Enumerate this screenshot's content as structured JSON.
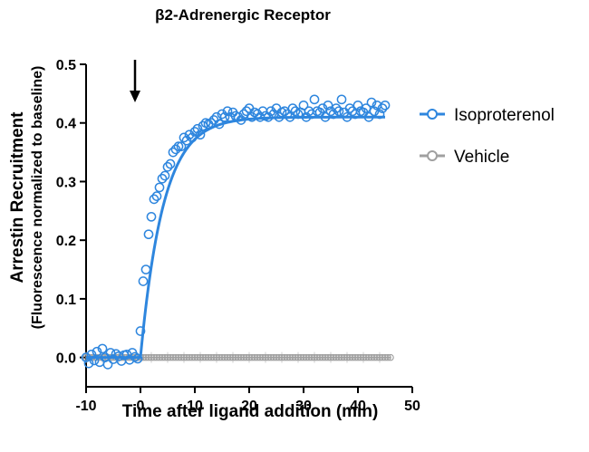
{
  "chart_data": {
    "type": "scatter",
    "title": "β2-Adrenergic Receptor",
    "xlabel": "Time after ligand addition (min)",
    "ylabel": "Arrestin Recruitment",
    "ylabel_secondary": "(Fluorescence normalized to baseline)",
    "xlim": [
      -10,
      50
    ],
    "ylim": [
      -0.05,
      0.5
    ],
    "x_ticks": [
      -10,
      0,
      10,
      20,
      30,
      40,
      50
    ],
    "x_tick_labels": [
      "-10",
      "0",
      "10",
      "20",
      "30",
      "40",
      "50"
    ],
    "y_ticks": [
      0.0,
      0.1,
      0.2,
      0.3,
      0.4,
      0.5
    ],
    "y_tick_labels": [
      "0.0",
      "0.1",
      "0.2",
      "0.3",
      "0.4",
      "0.5"
    ],
    "annotation_arrow_x": -1,
    "legend_position": "right",
    "grid": false,
    "series": [
      {
        "name": "Isoproterenol",
        "color": "#2e86de",
        "fit": {
          "baseline": 0.0,
          "plateau": 0.41,
          "t0": 0,
          "tau": 4.2
        },
        "x": [
          -10,
          -9.5,
          -9,
          -8.5,
          -8,
          -7.5,
          -7,
          -6.5,
          -6,
          -5.5,
          -5,
          -4.5,
          -4,
          -3.5,
          -3,
          -2.5,
          -2,
          -1.5,
          -1,
          -0.5,
          0,
          0.5,
          1,
          1.5,
          2,
          2.5,
          3,
          3.5,
          4,
          4.5,
          5,
          5.5,
          6,
          6.5,
          7,
          7.5,
          8,
          8.5,
          9,
          9.5,
          10,
          10.5,
          11,
          11.5,
          12,
          12.5,
          13,
          13.5,
          14,
          14.5,
          15,
          15.5,
          16,
          16.5,
          17,
          17.5,
          18,
          18.5,
          19,
          19.5,
          20,
          20.5,
          21,
          21.5,
          22,
          22.5,
          23,
          23.5,
          24,
          24.5,
          25,
          25.5,
          26,
          26.5,
          27,
          27.5,
          28,
          28.5,
          29,
          29.5,
          30,
          30.5,
          31,
          31.5,
          32,
          32.5,
          33,
          33.5,
          34,
          34.5,
          35,
          35.5,
          36,
          36.5,
          37,
          37.5,
          38,
          38.5,
          39,
          39.5,
          40,
          40.5,
          41,
          41.5,
          42,
          42.5,
          43,
          43.5,
          44,
          44.5,
          45
        ],
        "y": [
          0.0,
          -0.01,
          0.005,
          -0.005,
          0.01,
          -0.008,
          0.015,
          0.0,
          -0.012,
          0.008,
          -0.003,
          0.006,
          0.002,
          -0.006,
          0.004,
          0.005,
          -0.004,
          0.008,
          0.001,
          -0.002,
          0.045,
          0.13,
          0.15,
          0.21,
          0.24,
          0.27,
          0.275,
          0.29,
          0.305,
          0.31,
          0.325,
          0.33,
          0.35,
          0.355,
          0.36,
          0.36,
          0.375,
          0.37,
          0.38,
          0.375,
          0.385,
          0.39,
          0.38,
          0.395,
          0.4,
          0.398,
          0.4,
          0.405,
          0.41,
          0.398,
          0.415,
          0.41,
          0.42,
          0.41,
          0.418,
          0.412,
          0.41,
          0.405,
          0.415,
          0.42,
          0.425,
          0.41,
          0.418,
          0.415,
          0.41,
          0.42,
          0.412,
          0.41,
          0.42,
          0.415,
          0.425,
          0.41,
          0.418,
          0.42,
          0.415,
          0.41,
          0.425,
          0.42,
          0.415,
          0.418,
          0.43,
          0.41,
          0.42,
          0.415,
          0.44,
          0.42,
          0.418,
          0.425,
          0.41,
          0.43,
          0.42,
          0.415,
          0.425,
          0.42,
          0.44,
          0.418,
          0.41,
          0.425,
          0.42,
          0.415,
          0.43,
          0.42,
          0.418,
          0.425,
          0.41,
          0.435,
          0.42,
          0.43,
          0.415,
          0.425,
          0.43
        ]
      },
      {
        "name": "Vehicle",
        "color": "#a0a0a0",
        "x_start": -10,
        "x_end": 46,
        "x_step": 0.5,
        "value": 0.0
      }
    ]
  }
}
